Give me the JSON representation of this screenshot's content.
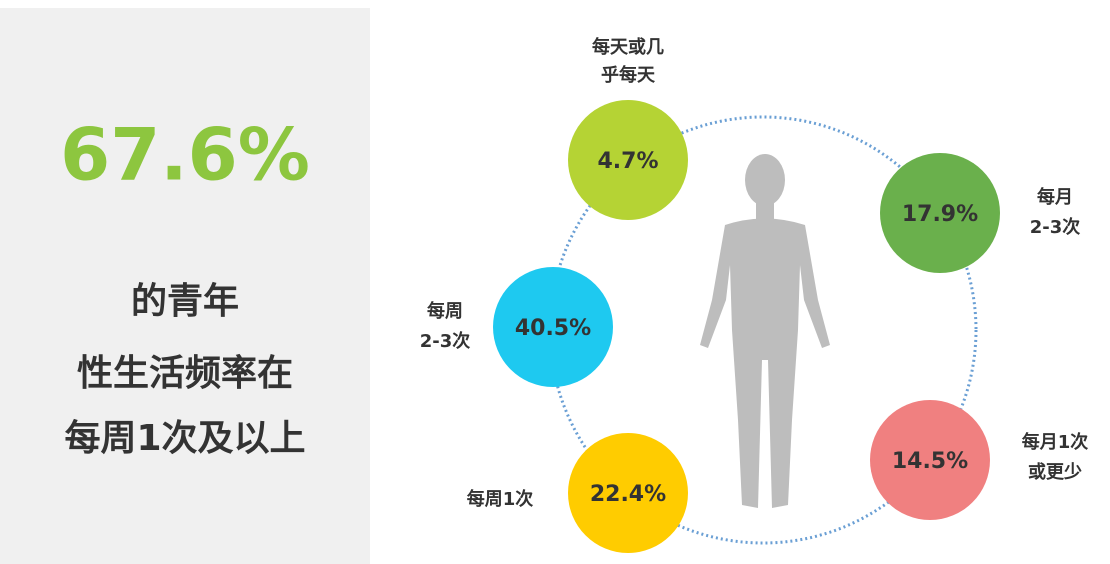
{
  "summary": {
    "headline": "67.6%",
    "lines": [
      "的青年",
      "性生活频率在",
      "每周1次及以上"
    ]
  },
  "items": [
    {
      "label": [
        "每天或几",
        "乎每天"
      ],
      "value": "4.7%"
    },
    {
      "label": [
        "每月",
        "2-3次"
      ],
      "value": "17.9%"
    },
    {
      "label": [
        "每周",
        "2-3次"
      ],
      "value": "40.5%"
    },
    {
      "label": [
        "每周1次"
      ],
      "value": "22.4%"
    },
    {
      "label": [
        "每月1次",
        "或更少"
      ],
      "value": "14.5%"
    }
  ]
}
